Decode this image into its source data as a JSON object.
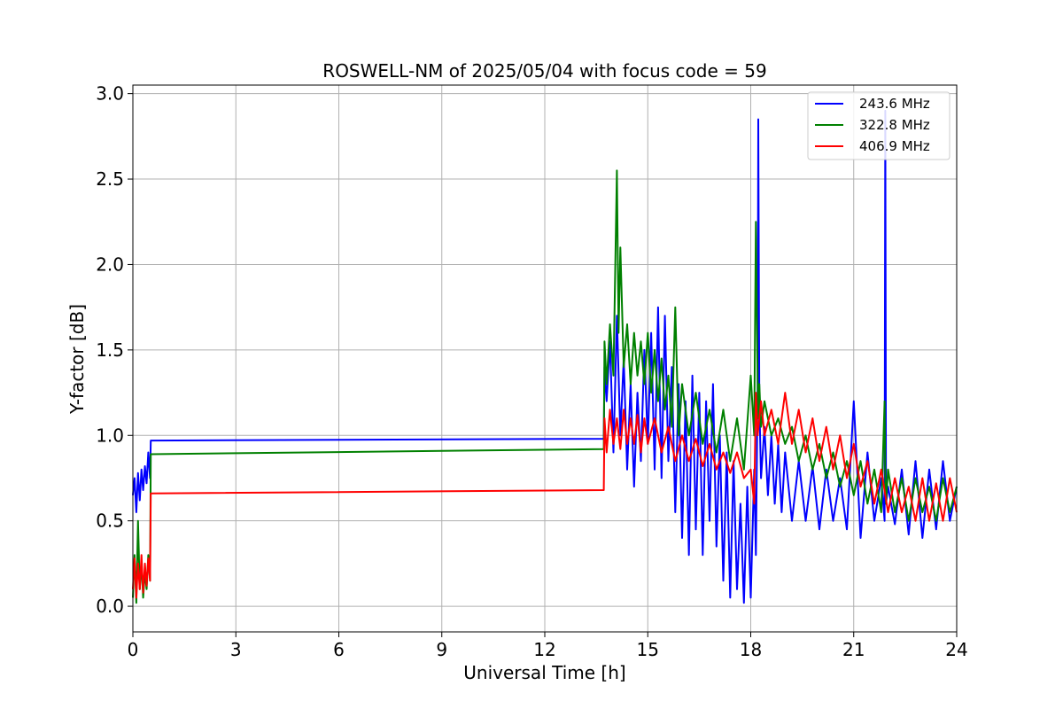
{
  "chart_data": {
    "type": "line",
    "title": "ROSWELL-NM of 2025/05/04 with focus code = 59",
    "xlabel": "Universal Time [h]",
    "ylabel": "Y-factor [dB]",
    "xlim": [
      0,
      24
    ],
    "ylim": [
      -0.15,
      3.05
    ],
    "xticks": [
      0,
      3,
      6,
      9,
      12,
      15,
      18,
      21,
      24
    ],
    "yticks": [
      0.0,
      0.5,
      1.0,
      1.5,
      2.0,
      2.5,
      3.0
    ],
    "xtick_labels": [
      "0",
      "3",
      "6",
      "9",
      "12",
      "15",
      "18",
      "21",
      "24"
    ],
    "ytick_labels": [
      "0.0",
      "0.5",
      "1.0",
      "1.5",
      "2.0",
      "2.5",
      "3.0"
    ],
    "grid": true,
    "legend_position": "top-right",
    "series": [
      {
        "name": "243.6 MHz",
        "color": "#0000ff",
        "x": [
          0.0,
          0.05,
          0.1,
          0.15,
          0.2,
          0.25,
          0.3,
          0.35,
          0.4,
          0.45,
          0.5,
          0.52,
          13.72,
          13.74,
          13.8,
          13.9,
          14.0,
          14.1,
          14.2,
          14.3,
          14.4,
          14.5,
          14.6,
          14.7,
          14.8,
          14.9,
          15.0,
          15.1,
          15.2,
          15.3,
          15.4,
          15.5,
          15.6,
          15.7,
          15.8,
          15.9,
          16.0,
          16.1,
          16.2,
          16.3,
          16.4,
          16.5,
          16.6,
          16.7,
          16.8,
          16.9,
          17.0,
          17.1,
          17.2,
          17.3,
          17.4,
          17.5,
          17.6,
          17.7,
          17.8,
          17.9,
          18.0,
          18.1,
          18.15,
          18.2,
          18.22,
          18.25,
          18.3,
          18.4,
          18.5,
          18.6,
          18.7,
          18.8,
          18.9,
          19.0,
          19.2,
          19.4,
          19.6,
          19.8,
          20.0,
          20.2,
          20.4,
          20.6,
          20.8,
          21.0,
          21.2,
          21.4,
          21.6,
          21.8,
          21.9,
          21.92,
          21.94,
          22.0,
          22.2,
          22.4,
          22.6,
          22.8,
          23.0,
          23.2,
          23.4,
          23.6,
          23.8,
          24.0
        ],
        "y": [
          0.65,
          0.75,
          0.55,
          0.78,
          0.62,
          0.8,
          0.68,
          0.82,
          0.72,
          0.9,
          0.75,
          0.97,
          0.98,
          1.4,
          1.2,
          1.55,
          0.9,
          1.7,
          1.0,
          1.45,
          0.8,
          1.3,
          0.7,
          1.25,
          0.85,
          1.5,
          0.95,
          1.6,
          0.8,
          1.75,
          0.75,
          1.7,
          0.85,
          1.4,
          0.55,
          1.3,
          0.4,
          1.2,
          0.3,
          1.35,
          0.45,
          1.25,
          0.3,
          1.2,
          0.5,
          1.3,
          0.35,
          1.0,
          0.15,
          0.9,
          0.05,
          0.85,
          0.1,
          0.6,
          0.02,
          0.7,
          0.05,
          0.8,
          0.3,
          1.3,
          2.85,
          1.2,
          0.75,
          1.05,
          0.65,
          1.0,
          0.6,
          0.95,
          0.55,
          0.9,
          0.5,
          0.85,
          0.5,
          0.82,
          0.45,
          0.8,
          0.5,
          0.75,
          0.45,
          1.2,
          0.4,
          0.9,
          0.5,
          0.75,
          0.5,
          2.9,
          0.6,
          0.7,
          0.48,
          0.8,
          0.42,
          0.85,
          0.4,
          0.8,
          0.45,
          0.85,
          0.5,
          0.7
        ]
      },
      {
        "name": "322.8 MHz",
        "color": "#008000",
        "x": [
          0.0,
          0.05,
          0.1,
          0.15,
          0.2,
          0.25,
          0.3,
          0.35,
          0.4,
          0.45,
          0.5,
          0.52,
          13.72,
          13.74,
          13.8,
          13.9,
          14.0,
          14.1,
          14.15,
          14.2,
          14.3,
          14.4,
          14.5,
          14.6,
          14.7,
          14.8,
          14.9,
          15.0,
          15.1,
          15.2,
          15.3,
          15.4,
          15.5,
          15.6,
          15.7,
          15.8,
          15.9,
          16.0,
          16.2,
          16.4,
          16.6,
          16.8,
          17.0,
          17.2,
          17.4,
          17.6,
          17.8,
          18.0,
          18.1,
          18.15,
          18.2,
          18.22,
          18.25,
          18.3,
          18.4,
          18.6,
          18.8,
          19.0,
          19.2,
          19.4,
          19.6,
          19.8,
          20.0,
          20.2,
          20.4,
          20.6,
          20.8,
          21.0,
          21.2,
          21.4,
          21.6,
          21.8,
          21.9,
          21.92,
          21.94,
          22.0,
          22.2,
          22.4,
          22.6,
          22.8,
          23.0,
          23.2,
          23.4,
          23.6,
          23.8,
          24.0
        ],
        "y": [
          0.05,
          0.3,
          0.02,
          0.5,
          0.1,
          0.25,
          0.05,
          0.2,
          0.1,
          0.3,
          0.15,
          0.89,
          0.92,
          1.55,
          1.3,
          1.65,
          1.35,
          2.55,
          1.6,
          2.1,
          1.4,
          1.65,
          1.3,
          1.6,
          1.35,
          1.55,
          1.3,
          1.6,
          1.25,
          1.5,
          1.2,
          1.45,
          1.15,
          1.35,
          1.05,
          1.75,
          1.0,
          1.3,
          1.0,
          1.25,
          0.95,
          1.15,
          0.9,
          1.15,
          0.85,
          1.1,
          0.8,
          1.35,
          1.0,
          2.25,
          1.3,
          1.1,
          1.3,
          1.05,
          1.2,
          1.0,
          1.1,
          0.95,
          1.05,
          0.85,
          1.0,
          0.8,
          0.95,
          0.75,
          0.9,
          0.7,
          0.85,
          0.65,
          0.85,
          0.6,
          0.8,
          0.55,
          1.2,
          0.75,
          0.6,
          0.8,
          0.55,
          0.75,
          0.5,
          0.75,
          0.55,
          0.7,
          0.5,
          0.75,
          0.55,
          0.7
        ]
      },
      {
        "name": "406.9 MHz",
        "color": "#ff0000",
        "x": [
          0.0,
          0.05,
          0.1,
          0.15,
          0.2,
          0.25,
          0.3,
          0.35,
          0.4,
          0.45,
          0.5,
          0.52,
          13.72,
          13.74,
          13.8,
          13.9,
          14.0,
          14.1,
          14.2,
          14.3,
          14.4,
          14.5,
          14.6,
          14.7,
          14.8,
          14.9,
          15.0,
          15.2,
          15.4,
          15.6,
          15.8,
          16.0,
          16.2,
          16.4,
          16.6,
          16.8,
          17.0,
          17.2,
          17.4,
          17.6,
          17.8,
          18.0,
          18.1,
          18.15,
          18.2,
          18.3,
          18.4,
          18.6,
          18.8,
          19.0,
          19.2,
          19.4,
          19.6,
          19.8,
          20.0,
          20.2,
          20.4,
          20.6,
          20.8,
          21.0,
          21.2,
          21.4,
          21.6,
          21.8,
          22.0,
          22.2,
          22.4,
          22.6,
          22.8,
          23.0,
          23.2,
          23.4,
          23.6,
          23.8,
          24.0
        ],
        "y": [
          0.1,
          0.28,
          0.05,
          0.25,
          0.1,
          0.3,
          0.08,
          0.25,
          0.12,
          0.28,
          0.15,
          0.66,
          0.68,
          1.1,
          0.9,
          1.15,
          0.95,
          1.1,
          0.92,
          1.15,
          0.95,
          1.1,
          0.95,
          1.12,
          0.9,
          1.1,
          0.95,
          1.1,
          0.9,
          1.05,
          0.85,
          1.0,
          0.85,
          0.98,
          0.82,
          0.95,
          0.8,
          0.9,
          0.78,
          0.9,
          0.75,
          0.8,
          0.6,
          1.25,
          1.0,
          1.2,
          1.0,
          1.15,
          0.95,
          1.25,
          0.95,
          1.15,
          0.9,
          1.1,
          0.85,
          1.05,
          0.8,
          1.0,
          0.75,
          0.95,
          0.7,
          0.85,
          0.6,
          0.8,
          0.55,
          0.75,
          0.55,
          0.7,
          0.5,
          0.75,
          0.5,
          0.72,
          0.5,
          0.75,
          0.55
        ]
      }
    ]
  }
}
